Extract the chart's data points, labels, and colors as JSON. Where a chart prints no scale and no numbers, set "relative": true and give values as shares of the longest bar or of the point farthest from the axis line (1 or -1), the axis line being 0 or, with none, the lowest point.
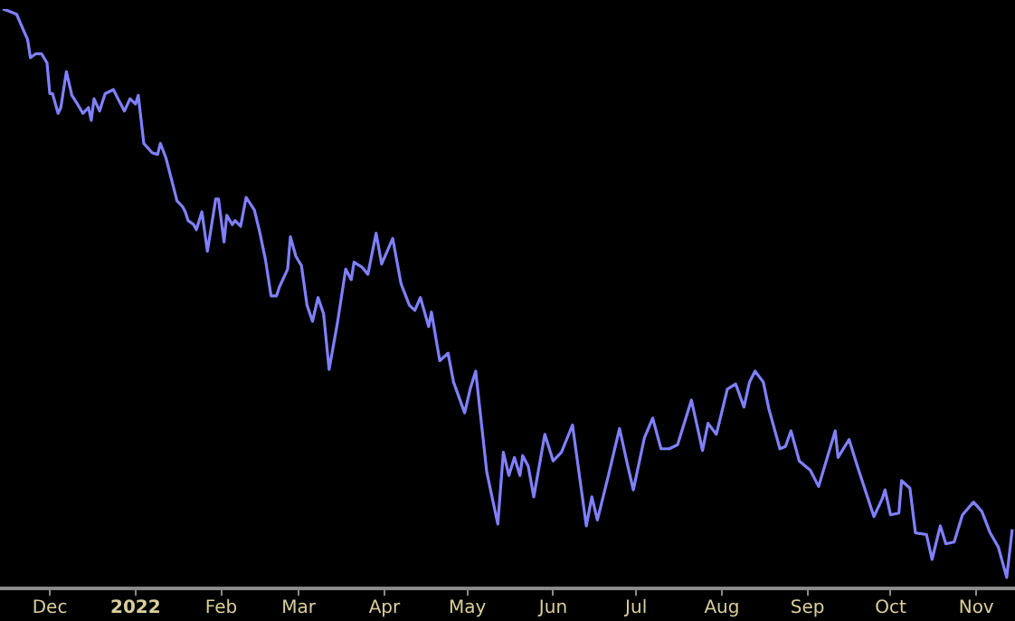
{
  "chart_data": {
    "type": "line",
    "relative": true,
    "grid": false,
    "legend": false,
    "marker": "none",
    "line_style": "solid",
    "xlim": [
      "2021-11-13",
      "2022-11-15"
    ],
    "xticks": [
      {
        "value": "2021-12-01",
        "label": "Dec"
      },
      {
        "value": "2022-01-01",
        "label": "2022"
      },
      {
        "value": "2022-02-01",
        "label": "Feb"
      },
      {
        "value": "2022-03-01",
        "label": "Mar"
      },
      {
        "value": "2022-04-01",
        "label": "Apr"
      },
      {
        "value": "2022-05-01",
        "label": "May"
      },
      {
        "value": "2022-06-01",
        "label": "Jun"
      },
      {
        "value": "2022-07-01",
        "label": "Jul"
      },
      {
        "value": "2022-08-01",
        "label": "Aug"
      },
      {
        "value": "2022-09-01",
        "label": "Sep"
      },
      {
        "value": "2022-10-01",
        "label": "Oct"
      },
      {
        "value": "2022-11-01",
        "label": "Nov"
      }
    ],
    "x": [
      "2021-11-14",
      "2021-11-16",
      "2021-11-19",
      "2021-11-21",
      "2021-11-23",
      "2021-11-24",
      "2021-11-26",
      "2021-11-28",
      "2021-11-30",
      "2021-12-01",
      "2021-12-02",
      "2021-12-04",
      "2021-12-05",
      "2021-12-07",
      "2021-12-09",
      "2021-12-11",
      "2021-12-13",
      "2021-12-15",
      "2021-12-16",
      "2021-12-17",
      "2021-12-19",
      "2021-12-21",
      "2021-12-24",
      "2021-12-26",
      "2021-12-28",
      "2021-12-30",
      "2022-01-01",
      "2022-01-02",
      "2022-01-04",
      "2022-01-07",
      "2022-01-09",
      "2022-01-10",
      "2022-01-12",
      "2022-01-14",
      "2022-01-16",
      "2022-01-18",
      "2022-01-19",
      "2022-01-20",
      "2022-01-22",
      "2022-01-23",
      "2022-01-25",
      "2022-01-27",
      "2022-01-30",
      "2022-01-31",
      "2022-02-02",
      "2022-02-03",
      "2022-02-05",
      "2022-02-06",
      "2022-02-08",
      "2022-02-10",
      "2022-02-13",
      "2022-02-15",
      "2022-02-17",
      "2022-02-19",
      "2022-02-21",
      "2022-02-22",
      "2022-02-25",
      "2022-02-26",
      "2022-02-28",
      "2022-03-02",
      "2022-03-04",
      "2022-03-06",
      "2022-03-08",
      "2022-03-10",
      "2022-03-12",
      "2022-03-15",
      "2022-03-18",
      "2022-03-20",
      "2022-03-21",
      "2022-03-24",
      "2022-03-26",
      "2022-03-29",
      "2022-03-31",
      "2022-04-04",
      "2022-04-07",
      "2022-04-10",
      "2022-04-12",
      "2022-04-14",
      "2022-04-17",
      "2022-04-18",
      "2022-04-21",
      "2022-04-24",
      "2022-04-26",
      "2022-04-30",
      "2022-05-02",
      "2022-05-04",
      "2022-05-08",
      "2022-05-12",
      "2022-05-14",
      "2022-05-16",
      "2022-05-18",
      "2022-05-20",
      "2022-05-21",
      "2022-05-23",
      "2022-05-25",
      "2022-05-29",
      "2022-06-01",
      "2022-06-04",
      "2022-06-08",
      "2022-06-13",
      "2022-06-15",
      "2022-06-17",
      "2022-06-21",
      "2022-06-25",
      "2022-06-28",
      "2022-06-30",
      "2022-07-04",
      "2022-07-07",
      "2022-07-10",
      "2022-07-13",
      "2022-07-16",
      "2022-07-21",
      "2022-07-23",
      "2022-07-25",
      "2022-07-27",
      "2022-07-30",
      "2022-08-03",
      "2022-08-06",
      "2022-08-09",
      "2022-08-11",
      "2022-08-13",
      "2022-08-16",
      "2022-08-18",
      "2022-08-22",
      "2022-08-24",
      "2022-08-26",
      "2022-08-29",
      "2022-09-02",
      "2022-09-05",
      "2022-09-11",
      "2022-09-12",
      "2022-09-16",
      "2022-09-19",
      "2022-09-25",
      "2022-09-28",
      "2022-09-29",
      "2022-10-01",
      "2022-10-04",
      "2022-10-05",
      "2022-10-08",
      "2022-10-10",
      "2022-10-14",
      "2022-10-16",
      "2022-10-19",
      "2022-10-21",
      "2022-10-24",
      "2022-10-27",
      "2022-10-31",
      "2022-11-03",
      "2022-11-06",
      "2022-11-09",
      "2022-11-12",
      "2022-11-14"
    ],
    "series": [
      {
        "color": "#8080ff",
        "values": [
          1.0,
          0.997,
          0.991,
          0.969,
          0.947,
          0.916,
          0.923,
          0.923,
          0.907,
          0.854,
          0.854,
          0.82,
          0.83,
          0.892,
          0.851,
          0.836,
          0.82,
          0.83,
          0.808,
          0.845,
          0.824,
          0.854,
          0.861,
          0.842,
          0.824,
          0.845,
          0.836,
          0.851,
          0.768,
          0.752,
          0.749,
          0.768,
          0.743,
          0.706,
          0.669,
          0.659,
          0.65,
          0.635,
          0.628,
          0.619,
          0.65,
          0.582,
          0.672,
          0.672,
          0.598,
          0.644,
          0.628,
          0.635,
          0.625,
          0.675,
          0.653,
          0.613,
          0.567,
          0.505,
          0.505,
          0.52,
          0.551,
          0.607,
          0.573,
          0.557,
          0.489,
          0.461,
          0.502,
          0.474,
          0.378,
          0.458,
          0.551,
          0.533,
          0.563,
          0.554,
          0.542,
          0.613,
          0.56,
          0.604,
          0.526,
          0.489,
          0.48,
          0.502,
          0.452,
          0.477,
          0.393,
          0.406,
          0.356,
          0.303,
          0.344,
          0.375,
          0.201,
          0.111,
          0.235,
          0.195,
          0.226,
          0.195,
          0.229,
          0.211,
          0.158,
          0.266,
          0.22,
          0.235,
          0.282,
          0.108,
          0.158,
          0.118,
          0.195,
          0.276,
          0.211,
          0.17,
          0.26,
          0.294,
          0.241,
          0.241,
          0.248,
          0.325,
          0.282,
          0.238,
          0.285,
          0.266,
          0.344,
          0.353,
          0.313,
          0.356,
          0.375,
          0.356,
          0.31,
          0.241,
          0.245,
          0.272,
          0.22,
          0.204,
          0.176,
          0.272,
          0.226,
          0.257,
          0.211,
          0.124,
          0.155,
          0.17,
          0.127,
          0.13,
          0.186,
          0.173,
          0.096,
          0.093,
          0.05,
          0.108,
          0.077,
          0.08,
          0.127,
          0.149,
          0.133,
          0.096,
          0.071,
          0.019,
          0.102
        ]
      }
    ]
  }
}
